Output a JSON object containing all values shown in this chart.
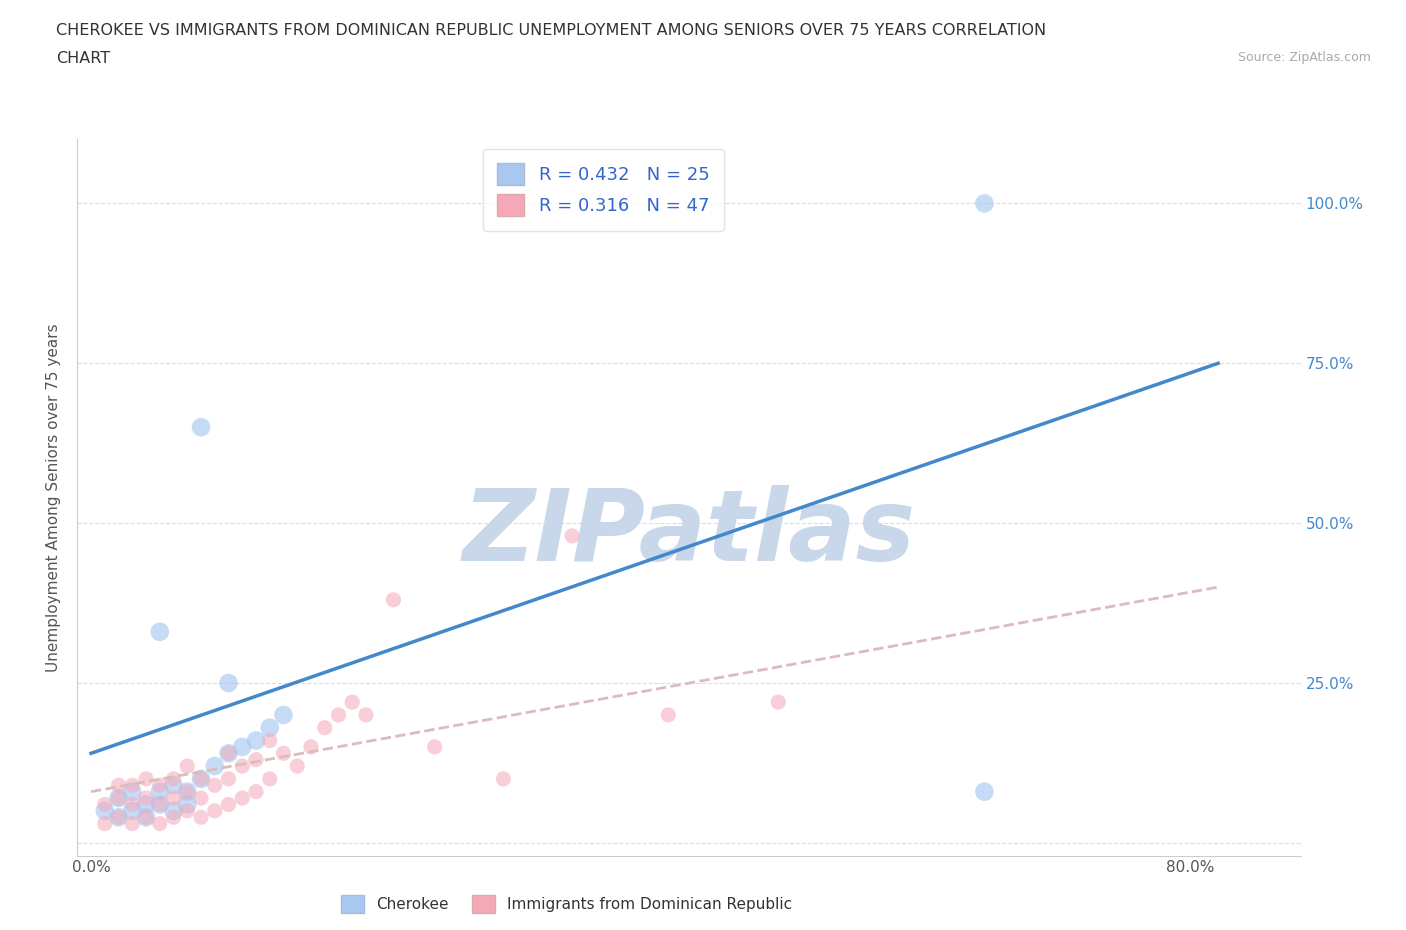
{
  "title_line1": "CHEROKEE VS IMMIGRANTS FROM DOMINICAN REPUBLIC UNEMPLOYMENT AMONG SENIORS OVER 75 YEARS CORRELATION",
  "title_line2": "CHART",
  "source": "Source: ZipAtlas.com",
  "ylabel": "Unemployment Among Seniors over 75 years",
  "xlim": [
    -0.01,
    0.88
  ],
  "ylim": [
    -0.02,
    1.1
  ],
  "R_cherokee": 0.432,
  "N_cherokee": 25,
  "R_dominican": 0.316,
  "N_dominican": 47,
  "cherokee_color": "#a8c8f0",
  "dominican_color": "#f4a8b8",
  "cherokee_line_color": "#4488cc",
  "dominican_line_color": "#ddbbbb",
  "watermark": "ZIPatlas",
  "watermark_color": "#c8d8ea",
  "background_color": "#ffffff",
  "cherokee_line_x0": 0.0,
  "cherokee_line_y0": 0.14,
  "cherokee_line_x1": 0.82,
  "cherokee_line_y1": 0.75,
  "dominican_line_x0": 0.0,
  "dominican_line_y0": 0.08,
  "dominican_line_x1": 0.82,
  "dominican_line_y1": 0.4,
  "cherokee_x": [
    0.01,
    0.02,
    0.02,
    0.03,
    0.03,
    0.04,
    0.04,
    0.05,
    0.05,
    0.06,
    0.06,
    0.07,
    0.07,
    0.08,
    0.09,
    0.1,
    0.11,
    0.12,
    0.13,
    0.14,
    0.05,
    0.08,
    0.1,
    0.65,
    0.65
  ],
  "cherokee_y": [
    0.05,
    0.04,
    0.07,
    0.05,
    0.08,
    0.04,
    0.06,
    0.06,
    0.08,
    0.05,
    0.09,
    0.06,
    0.08,
    0.1,
    0.12,
    0.14,
    0.15,
    0.16,
    0.18,
    0.2,
    0.33,
    0.65,
    0.25,
    0.08,
    1.0
  ],
  "dominican_x": [
    0.01,
    0.01,
    0.02,
    0.02,
    0.02,
    0.03,
    0.03,
    0.03,
    0.04,
    0.04,
    0.04,
    0.05,
    0.05,
    0.05,
    0.06,
    0.06,
    0.06,
    0.07,
    0.07,
    0.07,
    0.08,
    0.08,
    0.08,
    0.09,
    0.09,
    0.1,
    0.1,
    0.1,
    0.11,
    0.11,
    0.12,
    0.12,
    0.13,
    0.13,
    0.14,
    0.15,
    0.16,
    0.17,
    0.18,
    0.19,
    0.2,
    0.22,
    0.25,
    0.3,
    0.35,
    0.42,
    0.5
  ],
  "dominican_y": [
    0.03,
    0.06,
    0.04,
    0.07,
    0.09,
    0.03,
    0.06,
    0.09,
    0.04,
    0.07,
    0.1,
    0.03,
    0.06,
    0.09,
    0.04,
    0.07,
    0.1,
    0.05,
    0.08,
    0.12,
    0.04,
    0.07,
    0.1,
    0.05,
    0.09,
    0.06,
    0.1,
    0.14,
    0.07,
    0.12,
    0.08,
    0.13,
    0.1,
    0.16,
    0.14,
    0.12,
    0.15,
    0.18,
    0.2,
    0.22,
    0.2,
    0.38,
    0.15,
    0.1,
    0.48,
    0.2,
    0.22
  ]
}
